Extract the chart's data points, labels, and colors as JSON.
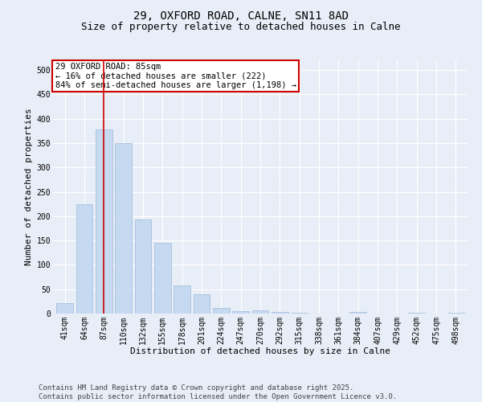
{
  "title": "29, OXFORD ROAD, CALNE, SN11 8AD",
  "subtitle": "Size of property relative to detached houses in Calne",
  "xlabel": "Distribution of detached houses by size in Calne",
  "ylabel": "Number of detached properties",
  "categories": [
    "41sqm",
    "64sqm",
    "87sqm",
    "110sqm",
    "132sqm",
    "155sqm",
    "178sqm",
    "201sqm",
    "224sqm",
    "247sqm",
    "270sqm",
    "292sqm",
    "315sqm",
    "338sqm",
    "361sqm",
    "384sqm",
    "407sqm",
    "429sqm",
    "452sqm",
    "475sqm",
    "498sqm"
  ],
  "values": [
    22,
    225,
    378,
    350,
    193,
    145,
    57,
    40,
    11,
    5,
    7,
    3,
    1,
    0,
    0,
    3,
    0,
    0,
    2,
    0,
    1
  ],
  "bar_color": "#c5d9f0",
  "bar_edge_color": "#a0b8d8",
  "vline_x_index": 2,
  "vline_color": "#cc0000",
  "annotation_line1": "29 OXFORD ROAD: 85sqm",
  "annotation_line2": "← 16% of detached houses are smaller (222)",
  "annotation_line3": "84% of semi-detached houses are larger (1,198) →",
  "annotation_box_color": "#cc0000",
  "ylim": [
    0,
    520
  ],
  "yticks": [
    0,
    50,
    100,
    150,
    200,
    250,
    300,
    350,
    400,
    450,
    500
  ],
  "background_color": "#e8eef7",
  "footer_line1": "Contains HM Land Registry data © Crown copyright and database right 2025.",
  "footer_line2": "Contains public sector information licensed under the Open Government Licence v3.0.",
  "title_fontsize": 10,
  "subtitle_fontsize": 9,
  "axis_label_fontsize": 8,
  "tick_fontsize": 7,
  "annotation_fontsize": 7.5,
  "footer_fontsize": 6.5
}
